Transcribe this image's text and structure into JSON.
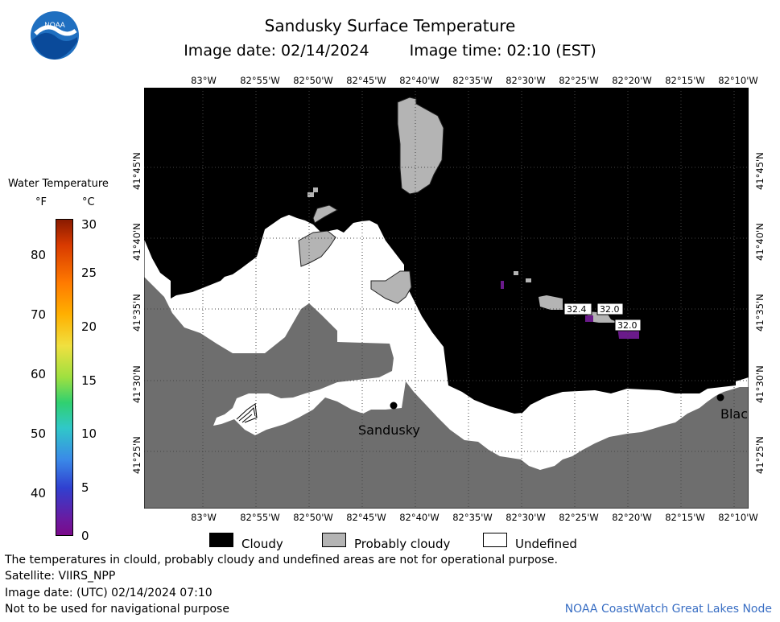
{
  "header": {
    "title": "Sandusky Surface Temperature",
    "image_date": "Image date: 02/14/2024",
    "image_time": "Image time: 02:10 (EST)"
  },
  "logo": {
    "text": "NOAA"
  },
  "colorbar": {
    "title": "Water Temperature",
    "unit_f": "°F",
    "unit_c": "°C",
    "f_ticks": [
      "80",
      "70",
      "60",
      "50",
      "40"
    ],
    "c_ticks": [
      "30",
      "25",
      "20",
      "15",
      "10",
      "5",
      "0"
    ]
  },
  "map": {
    "lon_labels": [
      "83°W",
      "82°55'W",
      "82°50'W",
      "82°45'W",
      "82°40'W",
      "82°35'W",
      "82°30'W",
      "82°25'W",
      "82°20'W",
      "82°15'W",
      "82°10'W"
    ],
    "lat_labels": [
      "41°45'N",
      "41°40'N",
      "41°35'N",
      "41°30'N",
      "41°25'N"
    ],
    "cities": [
      {
        "name": "Sandusky"
      },
      {
        "name": "Blac"
      }
    ],
    "temp_labels": [
      "32.4",
      "32.0",
      "32.0"
    ]
  },
  "legend": {
    "cloudy": "Cloudy",
    "probably_cloudy": "Probably cloudy",
    "undefined": "Undefined"
  },
  "footer": {
    "line1": "The temperatures in clould, probably cloudy and undefined areas are not for operational purpose.",
    "line2": "Satellite: VIIRS_NPP",
    "line3": "Image date: (UTC) 02/14/2024  07:10",
    "line4": "Not to be used for navigational purpose",
    "credit": "NOAA CoastWatch Great Lakes Node"
  },
  "colors": {
    "land": "#6e6e6e",
    "cloud": "#000000",
    "undefined": "#ffffff",
    "probably_cloudy": "#b4b4b4",
    "ice_cold": "#6a1a8a"
  }
}
